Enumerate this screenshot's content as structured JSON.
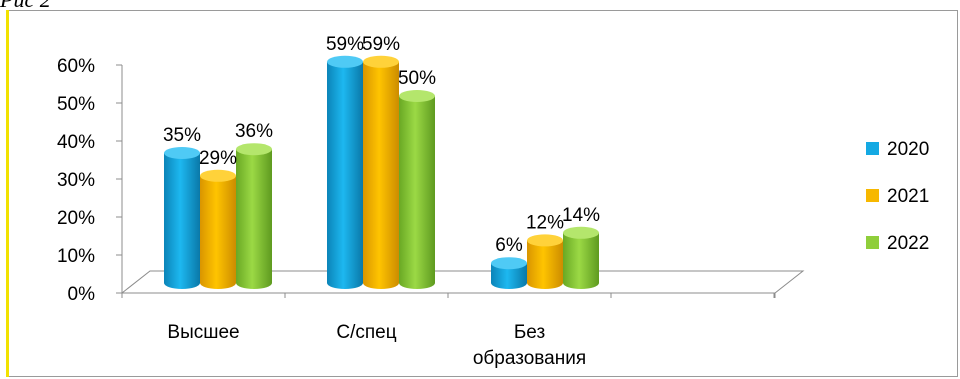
{
  "caption": "Рис 2",
  "chart_data": {
    "type": "bar",
    "categories": [
      "Высшее",
      "С/спец",
      "Без образования"
    ],
    "series": [
      {
        "name": "2020",
        "values": [
          35,
          59,
          6
        ],
        "labels": [
          "35%",
          "59%",
          "6%"
        ],
        "color": "#14a9e3"
      },
      {
        "name": "2021",
        "values": [
          29,
          59,
          12
        ],
        "labels": [
          "29%",
          "59%",
          "12%"
        ],
        "color": "#f7b800"
      },
      {
        "name": "2022",
        "values": [
          36,
          50,
          14
        ],
        "labels": [
          "36%",
          "50%",
          "14%"
        ],
        "color": "#8fce3b"
      }
    ],
    "yticks": [
      "0%",
      "10%",
      "20%",
      "30%",
      "40%",
      "50%",
      "60%"
    ],
    "ylim": [
      0,
      60
    ],
    "three_d": true,
    "grid": false,
    "legend_position": "right"
  }
}
